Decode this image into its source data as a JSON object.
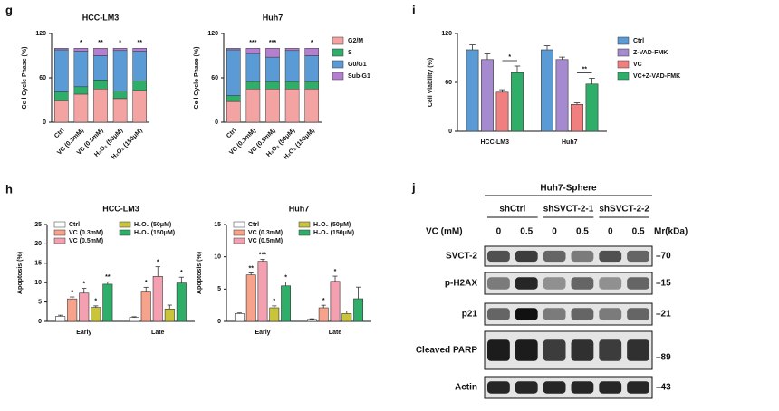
{
  "panels": [
    "g",
    "h",
    "i",
    "j"
  ],
  "chart_data": [
    {
      "type": "stacked_bar",
      "title": "HCC-LM3",
      "ylabel": "Cell Cycle Phase (%)",
      "categories": [
        "Ctrl",
        "VC (0.3mM)",
        "VC (0.5mM)",
        "H₂O₂ (50μM)",
        "H₂O₂ (150μM)"
      ],
      "x_label_rotation": 45,
      "ylim": [
        0,
        120
      ],
      "yticks": [
        0,
        60,
        120
      ],
      "legend": "none",
      "annotations": [
        null,
        "*",
        "**",
        "*",
        "**"
      ],
      "series": [
        {
          "name": "G2/M",
          "color": "#f4a3a3",
          "values": [
            29,
            38,
            45,
            32,
            43
          ]
        },
        {
          "name": "S",
          "color": "#2fae6a",
          "values": [
            12,
            10,
            12,
            10,
            13
          ]
        },
        {
          "name": "G0/G1",
          "color": "#5b9bd5",
          "values": [
            57,
            48,
            33,
            55,
            40
          ]
        },
        {
          "name": "Sub-G1",
          "color": "#b57fcf",
          "values": [
            2,
            4,
            10,
            3,
            4
          ]
        }
      ]
    },
    {
      "type": "stacked_bar",
      "title": "Huh7",
      "ylabel": "Cell Cycle Phase (%)",
      "categories": [
        "Ctrl",
        "VC (0.3mM)",
        "VC (0.5mM)",
        "H₂O₂ (50μM)",
        "H₂O₂ (150μM)"
      ],
      "x_label_rotation": 45,
      "ylim": [
        0,
        120
      ],
      "yticks": [
        0,
        60,
        120
      ],
      "legend": "right",
      "annotations": [
        null,
        "***",
        "***",
        null,
        "*"
      ],
      "series": [
        {
          "name": "G2/M",
          "color": "#f4a3a3",
          "values": [
            28,
            45,
            45,
            45,
            45
          ]
        },
        {
          "name": "S",
          "color": "#2fae6a",
          "values": [
            8,
            10,
            10,
            10,
            10
          ]
        },
        {
          "name": "G0/G1",
          "color": "#5b9bd5",
          "values": [
            62,
            38,
            33,
            42,
            35
          ]
        },
        {
          "name": "Sub-G1",
          "color": "#b57fcf",
          "values": [
            2,
            7,
            12,
            3,
            10
          ]
        }
      ]
    },
    {
      "type": "grouped_bar",
      "title": null,
      "ylabel": "Cell Viability (%)",
      "categories": [
        "HCC-LM3",
        "Huh7"
      ],
      "ylim": [
        0,
        120
      ],
      "yticks": [
        0,
        60,
        120
      ],
      "legend": "right",
      "bracket_labels": [
        "*",
        "**"
      ],
      "series": [
        {
          "name": "Ctrl",
          "color": "#5b9bd5",
          "values": [
            100,
            100
          ],
          "errors": [
            6,
            5
          ]
        },
        {
          "name": "Z-VAD-FMK",
          "color": "#a58ad0",
          "values": [
            88,
            88
          ],
          "errors": [
            7,
            3
          ]
        },
        {
          "name": "VC",
          "color": "#f08080",
          "values": [
            48,
            33
          ],
          "errors": [
            3,
            2
          ]
        },
        {
          "name": "VC+Z-VAD-FMK",
          "color": "#2fae6a",
          "values": [
            72,
            58
          ],
          "errors": [
            8,
            7
          ]
        }
      ]
    },
    {
      "type": "grouped_bar",
      "title": "HCC-LM3",
      "ylabel": "Apoptosis (%)",
      "categories": [
        "Early",
        "Late"
      ],
      "ylim": [
        0,
        25
      ],
      "yticks": [
        0,
        5,
        10,
        15,
        20,
        25
      ],
      "legend": "top",
      "series": [
        {
          "name": "Ctrl",
          "color": "#ffffff",
          "values": [
            1.3,
            1.0
          ],
          "errors": [
            0.3,
            0.2
          ],
          "annotations": [
            null,
            null
          ]
        },
        {
          "name": "VC (0.3mM)",
          "color": "#f7a38c",
          "values": [
            5.8,
            7.8
          ],
          "errors": [
            0.5,
            1.0
          ],
          "annotations": [
            "*",
            "*"
          ]
        },
        {
          "name": "VC (0.5mM)",
          "color": "#f4a0b0",
          "values": [
            7.3,
            11.6
          ],
          "errors": [
            1.2,
            2.5
          ],
          "annotations": [
            "*",
            "*"
          ]
        },
        {
          "name": "H₂O₂ (50μM)",
          "color": "#c9c43a",
          "values": [
            3.6,
            3.2
          ],
          "errors": [
            0.4,
            1.0
          ],
          "annotations": [
            "*",
            null
          ]
        },
        {
          "name": "H₂O₂ (150μM)",
          "color": "#2fae6a",
          "values": [
            9.6,
            9.9
          ],
          "errors": [
            0.6,
            1.5
          ],
          "annotations": [
            "**",
            "*"
          ]
        }
      ]
    },
    {
      "type": "grouped_bar",
      "title": "Huh7",
      "ylabel": "Apoptosis (%)",
      "categories": [
        "Early",
        "Late"
      ],
      "ylim": [
        0,
        15
      ],
      "yticks": [
        0,
        5,
        10,
        15
      ],
      "legend": "top",
      "series": [
        {
          "name": "Ctrl",
          "color": "#ffffff",
          "values": [
            1.2,
            0.3
          ],
          "errors": [
            0.1,
            0.1
          ],
          "annotations": [
            null,
            null
          ]
        },
        {
          "name": "VC (0.3mM)",
          "color": "#f7a38c",
          "values": [
            7.2,
            2.1
          ],
          "errors": [
            0.3,
            0.4
          ],
          "annotations": [
            "**",
            "*"
          ]
        },
        {
          "name": "VC (0.5mM)",
          "color": "#f4a0b0",
          "values": [
            9.3,
            6.2
          ],
          "errors": [
            0.3,
            0.8
          ],
          "annotations": [
            "***",
            "*"
          ]
        },
        {
          "name": "H₂O₂ (50μM)",
          "color": "#c9c43a",
          "values": [
            2.1,
            1.2
          ],
          "errors": [
            0.3,
            0.4
          ],
          "annotations": [
            "*",
            null
          ]
        },
        {
          "name": "H₂O₂ (150μM)",
          "color": "#2fae6a",
          "values": [
            5.5,
            3.5
          ],
          "errors": [
            0.6,
            1.8
          ],
          "annotations": [
            "*",
            null
          ]
        }
      ]
    }
  ],
  "blot": {
    "title": "Huh7-Sphere",
    "groups": [
      "shCtrl",
      "shSVCT-2-1",
      "shSVCT-2-2"
    ],
    "dose_label": "VC (mM)",
    "doses": [
      "0",
      "0.5",
      "0",
      "0.5",
      "0",
      "0.5"
    ],
    "mw_unit": "Mr(kDa)",
    "rows": [
      {
        "label": "SVCT-2",
        "mw": "–70"
      },
      {
        "label": "p-H2AX",
        "mw": "–15"
      },
      {
        "label": "p21",
        "mw": "–21"
      },
      {
        "label": "Cleaved PARP",
        "mw": "–89"
      },
      {
        "label": "Actin",
        "mw": "–43"
      }
    ]
  }
}
